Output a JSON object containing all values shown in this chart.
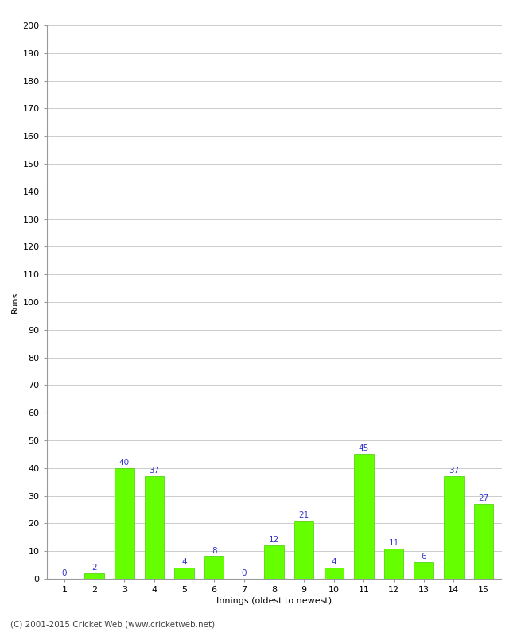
{
  "categories": [
    1,
    2,
    3,
    4,
    5,
    6,
    7,
    8,
    9,
    10,
    11,
    12,
    13,
    14,
    15
  ],
  "values": [
    0,
    2,
    40,
    37,
    4,
    8,
    0,
    12,
    21,
    4,
    45,
    11,
    6,
    37,
    27
  ],
  "bar_color": "#66ff00",
  "bar_edge_color": "#44cc00",
  "label_color": "#3333cc",
  "ylabel": "Runs",
  "xlabel": "Innings (oldest to newest)",
  "ylim": [
    0,
    200
  ],
  "yticks": [
    0,
    10,
    20,
    30,
    40,
    50,
    60,
    70,
    80,
    90,
    100,
    110,
    120,
    130,
    140,
    150,
    160,
    170,
    180,
    190,
    200
  ],
  "footer": "(C) 2001-2015 Cricket Web (www.cricketweb.net)",
  "background_color": "#ffffff",
  "grid_color": "#cccccc",
  "label_fontsize": 7.5,
  "axis_fontsize": 8,
  "footer_fontsize": 7.5
}
